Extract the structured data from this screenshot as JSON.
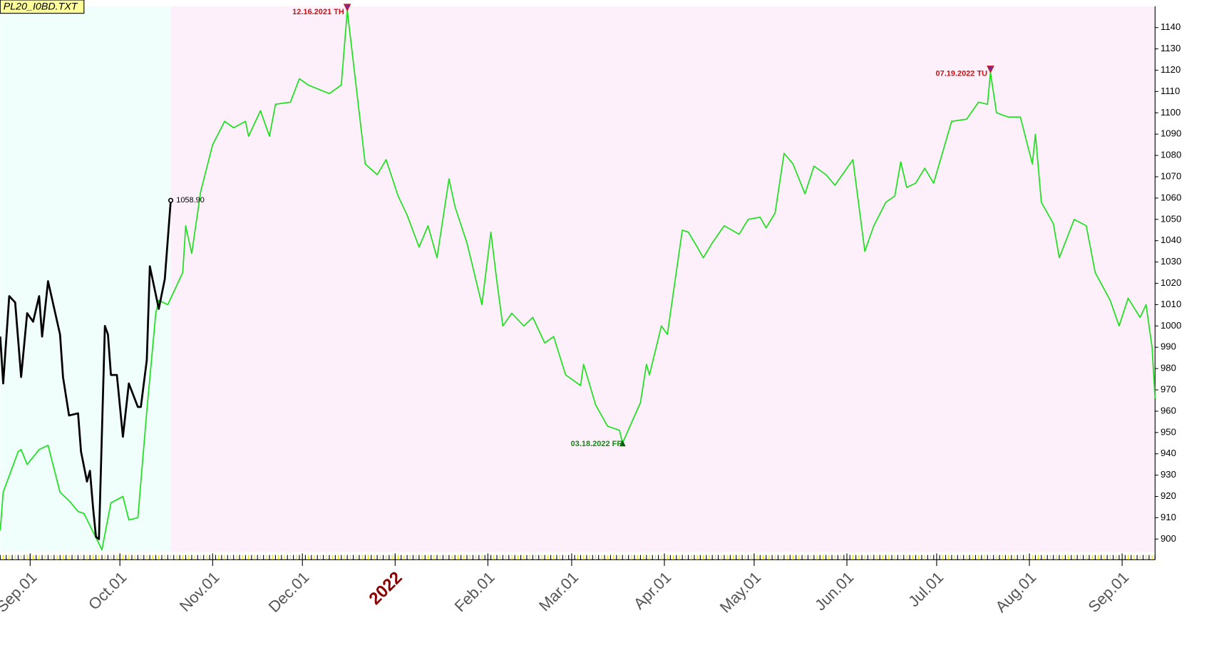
{
  "chart_data": {
    "type": "line",
    "title": "PL20_I0BD.TXT",
    "xlim": [
      -10,
      376
    ],
    "ylim": [
      894,
      1150
    ],
    "xticks": [
      {
        "value": 0,
        "label": "Sep.01"
      },
      {
        "value": 30,
        "label": "Oct.01"
      },
      {
        "value": 61,
        "label": "Nov.01"
      },
      {
        "value": 91,
        "label": "Dec.01"
      },
      {
        "value": 122,
        "label": "2022"
      },
      {
        "value": 153,
        "label": "Feb.01"
      },
      {
        "value": 181,
        "label": "Mar.01"
      },
      {
        "value": 212,
        "label": "Apr.01"
      },
      {
        "value": 242,
        "label": "May.01"
      },
      {
        "value": 273,
        "label": "Jun.01"
      },
      {
        "value": 303,
        "label": "Jul.01"
      },
      {
        "value": 334,
        "label": "Aug.01"
      },
      {
        "value": 365,
        "label": "Sep.01"
      }
    ],
    "yticks": [
      900,
      910,
      920,
      930,
      940,
      950,
      960,
      970,
      980,
      990,
      1000,
      1010,
      1020,
      1030,
      1040,
      1050,
      1060,
      1070,
      1080,
      1090,
      1100,
      1110,
      1120,
      1130,
      1140
    ],
    "series": [
      {
        "color": "#22e022",
        "x": [
          -10,
          -9,
          -4,
          -3,
          -1,
          3,
          6,
          10,
          13,
          16,
          18,
          24,
          27,
          31,
          33,
          36,
          39,
          42,
          43,
          46,
          51,
          52,
          54,
          57,
          61,
          65,
          68,
          72,
          73,
          77,
          80,
          82,
          87,
          90,
          93,
          100,
          104,
          106,
          112,
          116,
          119,
          123,
          126,
          130,
          133,
          136,
          140,
          142,
          146,
          151,
          154,
          156,
          158,
          161,
          165,
          168,
          172,
          175,
          179,
          184,
          185,
          189,
          193,
          197,
          198,
          204,
          206,
          207,
          211,
          213,
          218,
          220,
          223,
          225,
          228,
          232,
          237,
          240,
          244,
          246,
          249,
          252,
          255,
          259,
          262,
          266,
          269,
          275,
          279,
          282,
          286,
          289,
          291,
          293,
          296,
          299,
          302,
          308,
          313,
          317,
          320,
          321,
          323,
          327,
          331,
          335,
          336,
          338,
          342,
          344,
          349,
          353,
          356,
          361,
          364,
          367,
          371,
          373,
          375,
          376
        ],
        "values": [
          904,
          922,
          941,
          942,
          935,
          942,
          944,
          922,
          918,
          913,
          912,
          895,
          917,
          920,
          909,
          910,
          960,
          1006,
          1012,
          1010,
          1025,
          1047,
          1034,
          1063,
          1085,
          1096,
          1093,
          1096,
          1089,
          1101,
          1089,
          1104,
          1105,
          1116,
          1113,
          1109,
          1113,
          1148,
          1076,
          1071,
          1078,
          1061,
          1052,
          1037,
          1047,
          1032,
          1069,
          1056,
          1039,
          1010,
          1044,
          1021,
          1000,
          1006,
          1000,
          1004,
          992,
          995,
          977,
          972,
          982,
          963,
          953,
          951,
          945,
          964,
          982,
          977,
          1000,
          996,
          1045,
          1044,
          1037,
          1032,
          1039,
          1047,
          1043,
          1050,
          1051,
          1046,
          1053,
          1081,
          1076,
          1062,
          1075,
          1071,
          1066,
          1078,
          1035,
          1047,
          1058,
          1061,
          1077,
          1065,
          1067,
          1074,
          1067,
          1096,
          1097,
          1105,
          1104,
          1119,
          1100,
          1098,
          1098,
          1076,
          1090,
          1058,
          1048,
          1032,
          1050,
          1047,
          1025,
          1012,
          1000,
          1013,
          1004,
          1010,
          990,
          966
        ]
      },
      {
        "color": "#000000",
        "x": [
          -10,
          -9,
          -7,
          -5,
          -3,
          -1,
          1,
          3,
          4,
          6,
          10,
          11,
          13,
          16,
          17,
          19,
          20,
          21,
          22,
          23,
          25,
          26,
          27,
          29,
          31,
          33,
          36,
          37,
          39,
          40,
          43,
          45,
          47
        ],
        "values": [
          995,
          973,
          1014,
          1011,
          976,
          1006,
          1002,
          1014,
          995,
          1021,
          996,
          976,
          958,
          959,
          941,
          927,
          932,
          915,
          901,
          900,
          1000,
          996,
          977,
          977,
          948,
          973,
          962,
          962,
          984,
          1028,
          1008,
          1022,
          1058.9
        ],
        "value_labels": [
          null,
          null,
          null,
          null,
          null,
          null,
          null,
          null,
          null,
          null,
          null,
          null,
          null,
          null,
          null,
          null,
          null,
          null,
          null,
          null,
          null,
          null,
          null,
          null,
          null,
          null,
          null,
          null,
          null,
          null,
          null,
          null,
          "1058.90"
        ]
      }
    ],
    "annotations": [
      {
        "text": "12.16.2021 TH",
        "x": 106,
        "y": 1148,
        "color": "#d01010",
        "kind": "high"
      },
      {
        "text": "03.18.2022 FR",
        "x": 198,
        "y": 945,
        "color": "#128a12",
        "kind": "low"
      },
      {
        "text": "07.19.2022 TU",
        "x": 321,
        "y": 1119,
        "color": "#d01010",
        "kind": "high"
      }
    ]
  }
}
